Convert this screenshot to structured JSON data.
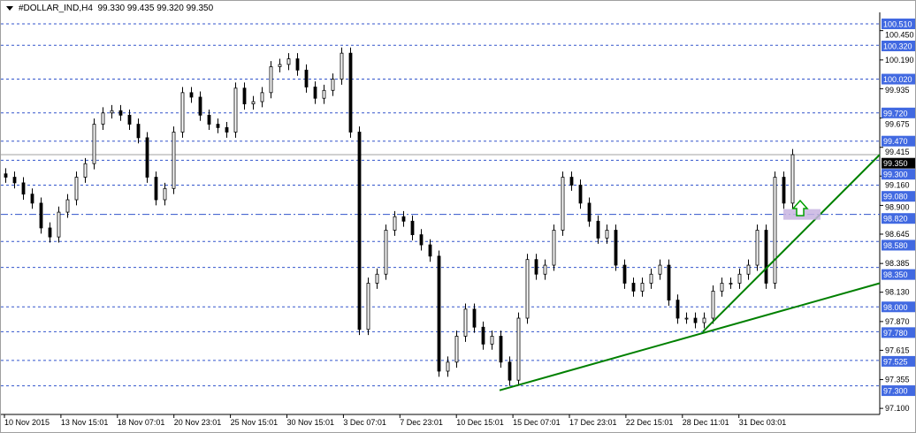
{
  "header": {
    "symbol": "#DOLLAR_IND,H4",
    "ohlc_text": "99.330 99.435 99.320 99.350"
  },
  "chart_data": {
    "type": "candlestick",
    "title": "#DOLLAR_IND,H4",
    "ylim": [
      97.05,
      100.62
    ],
    "grid": false,
    "price_ticks": [
      "100.450",
      "100.190",
      "99.935",
      "99.675",
      "99.415",
      "99.160",
      "98.900",
      "98.645",
      "98.385",
      "98.130",
      "97.870",
      "97.615",
      "97.355",
      "97.100"
    ],
    "levels": [
      "100.510",
      "100.320",
      "100.020",
      "99.720",
      "99.470",
      "99.300",
      "99.080",
      "98.820",
      "98.580",
      "98.350",
      "98.000",
      "97.780",
      "97.525",
      "97.300"
    ],
    "key_level": "98.820",
    "current_price": "99.350",
    "time_labels": [
      "10 Nov 2015",
      "13 Nov 15:01",
      "18 Nov 07:01",
      "20 Nov 23:01",
      "25 Nov 15:01",
      "30 Nov 15:01",
      "3 Dec 07:01",
      "7 Dec 23:01",
      "10 Dec 15:01",
      "15 Dec 07:01",
      "17 Dec 23:01",
      "22 Dec 15:01",
      "28 Dec 11:01",
      "31 Dec 03:01"
    ],
    "closes": [
      99.15,
      99.1,
      99.0,
      98.92,
      98.7,
      98.62,
      98.84,
      98.95,
      99.15,
      99.27,
      99.62,
      99.72,
      99.74,
      99.7,
      99.62,
      99.5,
      99.15,
      98.95,
      99.05,
      99.55,
      99.9,
      99.86,
      99.7,
      99.62,
      99.59,
      99.55,
      99.94,
      99.8,
      99.82,
      99.9,
      100.13,
      100.15,
      100.2,
      100.1,
      99.95,
      99.85,
      99.92,
      100.02,
      100.25,
      99.55,
      97.8,
      98.21,
      98.29,
      98.68,
      98.8,
      98.76,
      98.64,
      98.55,
      98.45,
      97.43,
      97.51,
      97.74,
      97.98,
      97.82,
      97.67,
      97.74,
      97.51,
      97.35,
      97.9,
      98.42,
      98.29,
      98.37,
      98.68,
      99.15,
      99.08,
      98.92,
      98.76,
      98.61,
      98.68,
      98.37,
      98.21,
      98.14,
      98.21,
      98.29,
      98.37,
      98.06,
      97.9,
      97.9,
      97.86,
      97.9,
      98.14,
      98.21,
      98.21,
      98.29,
      98.37,
      98.68,
      98.21,
      99.15,
      98.92,
      99.35
    ],
    "trendlines": [
      {
        "from_price": 97.26,
        "to_price": 98.21,
        "color": "#008000"
      },
      {
        "from_price": 97.78,
        "to_price": 99.35,
        "color": "#008000"
      }
    ],
    "colors": {
      "level_line": "#3355cc",
      "level_label_bg": "#4169e1",
      "candle": "#000000",
      "current_line": "#a0a0a0",
      "zone": "#c8b4e0",
      "arrow": "#00a000"
    }
  }
}
